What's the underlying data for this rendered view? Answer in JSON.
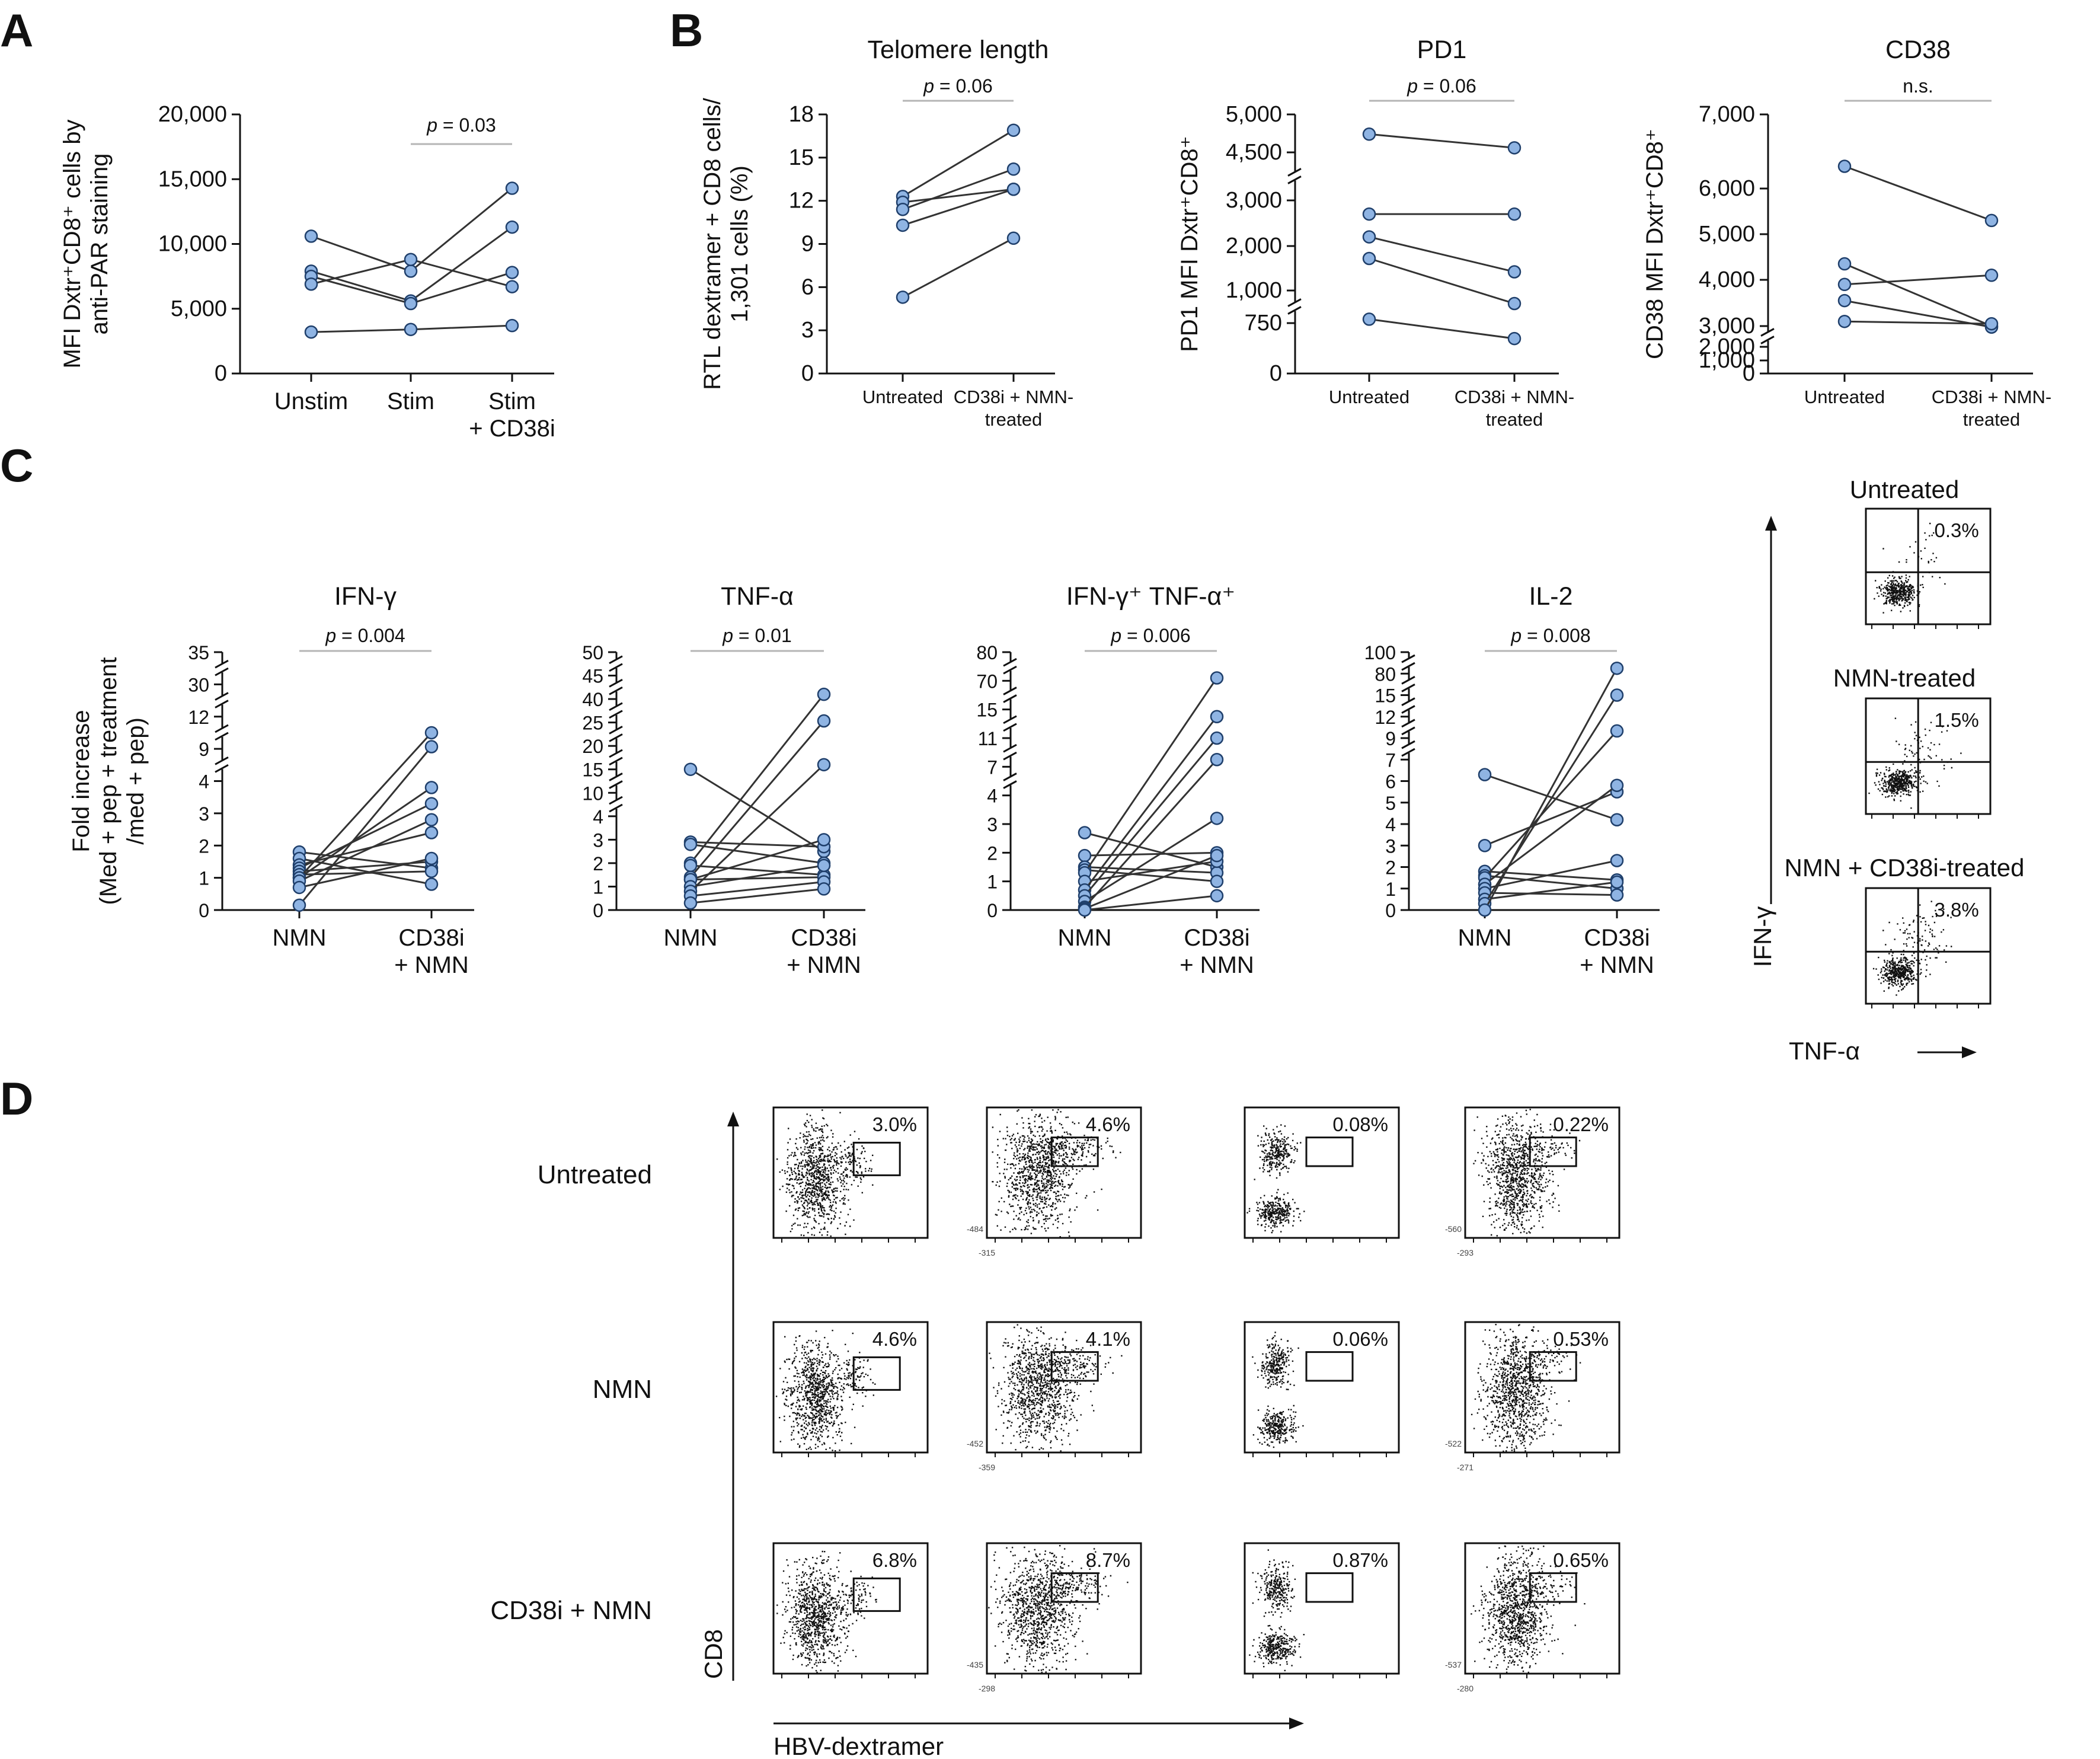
{
  "figure": {
    "panel_labels": [
      "A",
      "B",
      "C",
      "D"
    ]
  },
  "chart_data": [
    {
      "id": "A",
      "type": "line",
      "title": "",
      "ylabel": "MFI Dxtr⁺CD8⁺ cells by anti-PAR staining",
      "ylim": [
        0,
        20000
      ],
      "yticks": [
        "0",
        "5,000",
        "10,000",
        "15,000",
        "20,000"
      ],
      "categories": [
        "Unstim",
        "Stim",
        "Stim + CD38i"
      ],
      "category_lines": [
        [
          "Unstim"
        ],
        [
          "Stim"
        ],
        [
          "Stim",
          "+ CD38i"
        ]
      ],
      "pvalue": "p = 0.03",
      "series": [
        {
          "values": [
            10600,
            7900,
            14300
          ]
        },
        {
          "values": [
            7900,
            5600,
            11300
          ]
        },
        {
          "values": [
            7500,
            5400,
            7800
          ]
        },
        {
          "values": [
            6900,
            8800,
            6700
          ]
        },
        {
          "values": [
            3200,
            3400,
            3700
          ]
        }
      ]
    },
    {
      "id": "B1",
      "type": "line",
      "title": "Telomere length",
      "ylabel": "RTL dextramer + CD8 cells/ 1,301 cells (%)",
      "ylim": [
        0,
        18
      ],
      "yticks": [
        "0",
        "3",
        "6",
        "9",
        "12",
        "15",
        "18"
      ],
      "categories": [
        "Untreated",
        "CD38i + NMN-treated"
      ],
      "category_lines": [
        [
          "Untreated"
        ],
        [
          "CD38i + NMN-",
          "treated"
        ]
      ],
      "pvalue": "p = 0.06",
      "series": [
        {
          "values": [
            12.3,
            16.9
          ]
        },
        {
          "values": [
            11.9,
            12.8
          ]
        },
        {
          "values": [
            11.4,
            14.2
          ]
        },
        {
          "values": [
            10.3,
            12.8
          ]
        },
        {
          "values": [
            5.3,
            9.4
          ]
        }
      ]
    },
    {
      "id": "B2",
      "type": "line",
      "title": "PD1",
      "ylabel": "PD1 MFI Dxtr⁺CD8⁺",
      "yticks": [
        "0",
        "750",
        "1,000",
        "2,000",
        "3,000",
        "4,500",
        "5,000"
      ],
      "axis_breaks": [
        [
          750,
          1000
        ],
        [
          3000,
          4500
        ]
      ],
      "categories": [
        "Untreated",
        "CD38i + NMN-treated"
      ],
      "category_lines": [
        [
          "Untreated"
        ],
        [
          "CD38i + NMN-",
          "treated"
        ]
      ],
      "pvalue": "p = 0.06",
      "series": [
        {
          "values": [
            4740,
            4560
          ]
        },
        {
          "values": [
            2700,
            2700
          ]
        },
        {
          "values": [
            2200,
            1420
          ]
        },
        {
          "values": [
            1720,
            900
          ]
        },
        {
          "values": [
            780,
            520
          ]
        }
      ]
    },
    {
      "id": "B3",
      "type": "line",
      "title": "CD38",
      "ylabel": "CD38 MFI Dxtr⁺CD8⁺",
      "yticks": [
        "0",
        "1,000",
        "2,000",
        "3,000",
        "4,000",
        "5,000",
        "6,000",
        "7,000"
      ],
      "axis_breaks": [
        [
          2000,
          3000
        ]
      ],
      "categories": [
        "Untreated",
        "CD38i + NMN-treated"
      ],
      "category_lines": [
        [
          "Untreated"
        ],
        [
          "CD38i + NMN-",
          "treated"
        ]
      ],
      "pvalue": "n.s.",
      "series": [
        {
          "values": [
            6300,
            5300
          ]
        },
        {
          "values": [
            4350,
            3000
          ]
        },
        {
          "values": [
            3900,
            4100
          ]
        },
        {
          "values": [
            3550,
            2950
          ]
        },
        {
          "values": [
            3100,
            3050
          ]
        }
      ]
    },
    {
      "id": "C1",
      "type": "line",
      "title": "IFN-γ",
      "ylabel": "Fold increase (Med + pep + treatment /med + pep)",
      "ylabel_lines": [
        "Fold increase",
        "(Med + pep + treatment",
        "/med + pep)"
      ],
      "yticks": [
        "0",
        "1",
        "2",
        "3",
        "4",
        "9",
        "12",
        "30",
        "35"
      ],
      "categories": [
        "NMN",
        "CD38i + NMN"
      ],
      "category_lines": [
        [
          "NMN"
        ],
        [
          "CD38i",
          "+ NMN"
        ]
      ],
      "pvalue": "p = 0.004",
      "series": [
        {
          "values": [
            1.8,
            1.3
          ]
        },
        {
          "values": [
            1.6,
            0.8
          ]
        },
        {
          "values": [
            1.4,
            2.4
          ]
        },
        {
          "values": [
            1.3,
            3.3
          ]
        },
        {
          "values": [
            1.2,
            1.5
          ]
        },
        {
          "values": [
            1.1,
            1.2
          ]
        },
        {
          "values": [
            1.0,
            3.8
          ]
        },
        {
          "values": [
            1.0,
            10.5
          ]
        },
        {
          "values": [
            0.9,
            2.8
          ]
        },
        {
          "values": [
            0.7,
            1.6
          ]
        },
        {
          "values": [
            0.15,
            9.2
          ]
        }
      ]
    },
    {
      "id": "C2",
      "type": "line",
      "title": "TNF-α",
      "yticks": [
        "0",
        "1",
        "2",
        "3",
        "4",
        "10",
        "15",
        "20",
        "25",
        "40",
        "45",
        "50"
      ],
      "categories": [
        "NMN",
        "CD38i + NMN"
      ],
      "category_lines": [
        [
          "NMN"
        ],
        [
          "CD38i",
          "+ NMN"
        ]
      ],
      "pvalue": "p = 0.01",
      "series": [
        {
          "values": [
            15,
            2.5
          ]
        },
        {
          "values": [
            2.9,
            2.7
          ]
        },
        {
          "values": [
            2.8,
            2.0
          ]
        },
        {
          "values": [
            2.0,
            41
          ]
        },
        {
          "values": [
            1.9,
            1.5
          ]
        },
        {
          "values": [
            1.4,
            26
          ]
        },
        {
          "values": [
            1.3,
            3.0
          ]
        },
        {
          "values": [
            1.3,
            1.4
          ]
        },
        {
          "values": [
            1.0,
            1.9
          ]
        },
        {
          "values": [
            0.8,
            16
          ]
        },
        {
          "values": [
            0.6,
            1.2
          ]
        },
        {
          "values": [
            0.3,
            0.9
          ]
        }
      ]
    },
    {
      "id": "C3",
      "type": "line",
      "title": "IFN-γ⁺ TNF-α⁺",
      "yticks": [
        "0",
        "1",
        "2",
        "3",
        "4",
        "7",
        "11",
        "15",
        "70",
        "80"
      ],
      "categories": [
        "NMN",
        "CD38i + NMN"
      ],
      "category_lines": [
        [
          "NMN"
        ],
        [
          "CD38i",
          "+ NMN"
        ]
      ],
      "pvalue": "p = 0.006",
      "series": [
        {
          "values": [
            2.7,
            1.5
          ]
        },
        {
          "values": [
            1.9,
            2.0
          ]
        },
        {
          "values": [
            1.5,
            1.3
          ]
        },
        {
          "values": [
            1.4,
            1.0
          ]
        },
        {
          "values": [
            1.3,
            71
          ]
        },
        {
          "values": [
            1.0,
            1.7
          ]
        },
        {
          "values": [
            0.7,
            14
          ]
        },
        {
          "values": [
            0.5,
            11
          ]
        },
        {
          "values": [
            0.3,
            3.2
          ]
        },
        {
          "values": [
            0.1,
            8
          ]
        },
        {
          "values": [
            0.05,
            1.9
          ]
        },
        {
          "values": [
            0.0,
            0.5
          ]
        }
      ]
    },
    {
      "id": "C4",
      "type": "line",
      "title": "IL-2",
      "yticks": [
        "0",
        "1",
        "2",
        "3",
        "4",
        "5",
        "6",
        "7",
        "9",
        "12",
        "15",
        "80",
        "100"
      ],
      "categories": [
        "NMN",
        "CD38i + NMN"
      ],
      "category_lines": [
        [
          "NMN"
        ],
        [
          "CD38i",
          "+ NMN"
        ]
      ],
      "pvalue": "p = 0.008",
      "series": [
        {
          "values": [
            6.3,
            4.2
          ]
        },
        {
          "values": [
            3.0,
            5.5
          ]
        },
        {
          "values": [
            1.8,
            1.4
          ]
        },
        {
          "values": [
            1.6,
            1.0
          ]
        },
        {
          "values": [
            1.5,
            10
          ]
        },
        {
          "values": [
            1.2,
            5.8
          ]
        },
        {
          "values": [
            1.0,
            2.3
          ]
        },
        {
          "values": [
            0.8,
            0.7
          ]
        },
        {
          "values": [
            0.5,
            1.3
          ]
        },
        {
          "values": [
            0.3,
            15
          ]
        },
        {
          "values": [
            0.0,
            85
          ]
        }
      ]
    }
  ],
  "panel_C_flow": {
    "y_axis_label": "IFN-γ",
    "x_axis_label": "TNF-α",
    "plots": [
      {
        "title": "Untreated",
        "percent": "0.3%"
      },
      {
        "title": "NMN-treated",
        "percent": "1.5%"
      },
      {
        "title": "NMN + CD38i-treated",
        "percent": "3.8%"
      }
    ]
  },
  "panel_D_flow": {
    "y_axis_label": "CD8",
    "x_axis_label": "HBV-dextramer",
    "rows": [
      {
        "label": "Untreated",
        "percents": [
          "3.0%",
          "4.6%",
          "0.08%",
          "0.22%"
        ],
        "ymins": [
          "",
          "-484",
          "",
          "-560"
        ]
      },
      {
        "label": "NMN",
        "percents": [
          "4.6%",
          "4.1%",
          "0.06%",
          "0.53%"
        ],
        "ymins": [
          "",
          "-452",
          "",
          "-522"
        ]
      },
      {
        "label": "CD38i + NMN",
        "percents": [
          "6.8%",
          "8.7%",
          "0.87%",
          "0.65%"
        ],
        "ymins": [
          "",
          "-435",
          "",
          "-537"
        ]
      }
    ],
    "xmins": [
      [
        "",
        "-315",
        "",
        "-293"
      ],
      [
        "",
        "-359",
        "",
        "-271"
      ],
      [
        "",
        "-298",
        "",
        "-280"
      ]
    ]
  },
  "colors": {
    "marker_fill": "#8fb4e3",
    "marker_stroke": "#1f3f6b",
    "line": "#333333",
    "pvalue_bar": "#b5b5b5"
  }
}
